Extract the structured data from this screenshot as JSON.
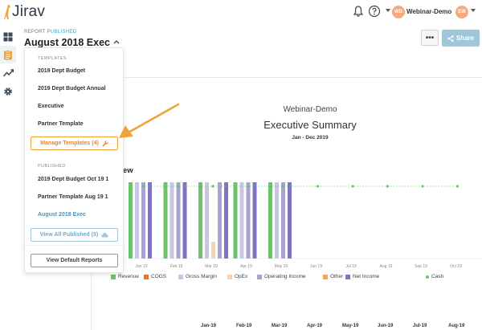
{
  "app": {
    "logo_text": "Jirav"
  },
  "topbar": {
    "org_name": "Webinar-Demo",
    "org_avatar": "WD",
    "user_avatar": "EW",
    "avatar_color": "#f5a97f",
    "icons": [
      "bell-icon",
      "help-icon"
    ]
  },
  "rail": {
    "items": [
      "dashboard-icon",
      "reports-icon",
      "trend-icon",
      "settings-icon"
    ]
  },
  "header": {
    "report_label": "REPORT",
    "status": "PUBLISHED",
    "title": "August 2018 Exec",
    "more_label": "•••",
    "share_label": "Share"
  },
  "dropdown": {
    "templates_heading": "TEMPLATES",
    "templates": [
      "2019 Dept Budget",
      "2019 Dept Budget Annual",
      "Executive",
      "Partner Template"
    ],
    "manage_label": "Manage Templates (4)",
    "published_heading": "PUBLISHED",
    "published": [
      "2019 Dept Budget Oct 19 1",
      "Partner Template Aug 19 1",
      "August 2018 Exec"
    ],
    "view_all_label": "View All Published (3)",
    "view_default_label": "View Default Reports"
  },
  "report": {
    "company": "Webinar-Demo",
    "title": "Executive Summary",
    "date_range": "Jan - Dec 2019",
    "section_title": "view",
    "bottom_months": [
      "Jan-19",
      "Feb-19",
      "Mar-19",
      "Apr-19",
      "May-19",
      "Jun-19",
      "Jul-19",
      "Aug-19"
    ]
  },
  "chart_data": {
    "type": "bar",
    "categories": [
      "Jan 19",
      "Feb 19",
      "Mar 19",
      "Apr 19",
      "May 19",
      "Jun 19",
      "Jul 19",
      "Aug 19",
      "Sep 19",
      "Oct 19"
    ],
    "series": [
      {
        "name": "Revenue",
        "color": "#6cc36a",
        "values": [
          1,
          1,
          1,
          1,
          1,
          0,
          0,
          0,
          0,
          0
        ]
      },
      {
        "name": "COGS",
        "color": "#e8772e",
        "values": [
          0,
          0,
          0,
          0,
          0,
          0,
          0,
          0,
          0,
          0
        ]
      },
      {
        "name": "Gross Margin",
        "color": "#c9c6e4",
        "values": [
          1,
          1,
          1,
          1,
          1,
          0,
          0,
          0,
          0,
          0
        ]
      },
      {
        "name": "OpEx",
        "color": "#f7d2b4",
        "values": [
          0,
          0,
          0.22,
          0,
          0,
          0,
          0,
          0,
          0,
          0
        ]
      },
      {
        "name": "Operating Income",
        "color": "#a9a3d3",
        "values": [
          1,
          1,
          1,
          1,
          1,
          0,
          0,
          0,
          0,
          0
        ]
      },
      {
        "name": "Other",
        "color": "#f3a74a",
        "values": [
          0,
          0,
          0,
          0,
          0,
          0,
          0,
          0,
          0,
          0
        ]
      },
      {
        "name": "Net Income",
        "color": "#7f74c0",
        "values": [
          1,
          1,
          1,
          1,
          1,
          0,
          0,
          0,
          0,
          0
        ]
      },
      {
        "name": "Cash",
        "color": "#6cc36a",
        "type": "line",
        "values": [
          1,
          1,
          1,
          1,
          1,
          1,
          1,
          1,
          1,
          1
        ]
      }
    ],
    "legend": "bottom",
    "grid": false
  }
}
